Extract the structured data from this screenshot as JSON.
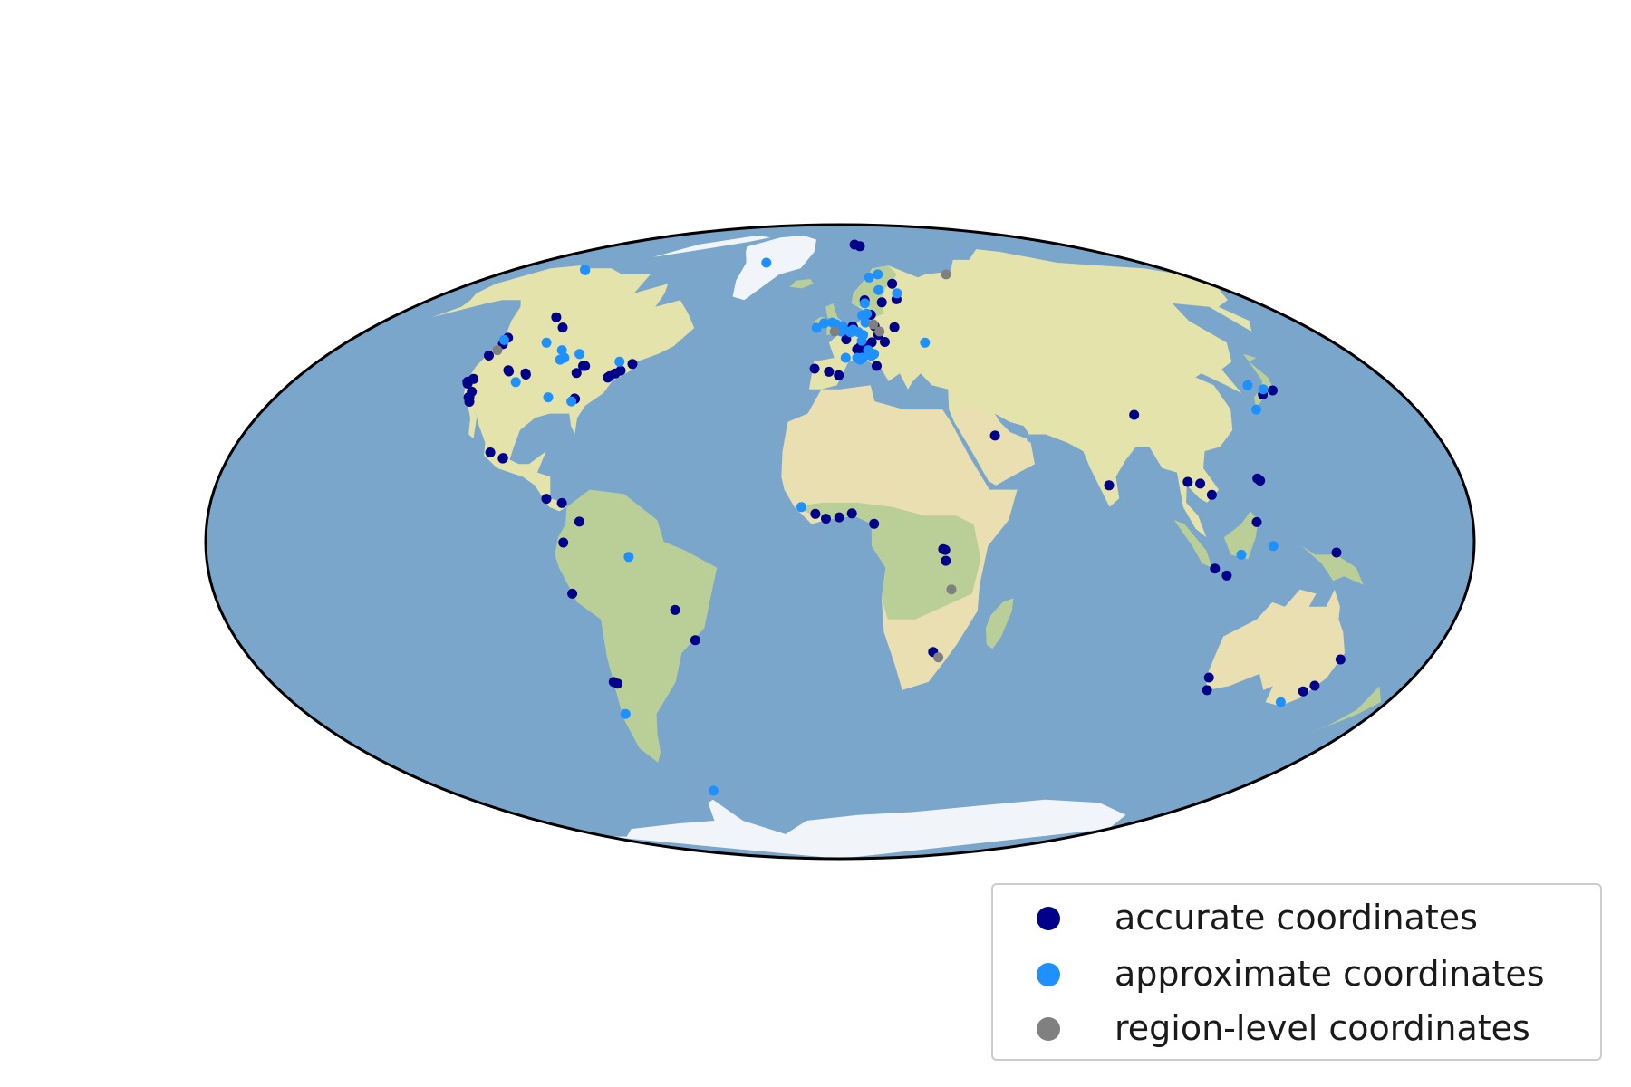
{
  "colors": {
    "ocean": "#7aa6cc",
    "ocean_deep": "#6b9ac2",
    "land": "#e3e3ab",
    "land_green": "#b9cf97",
    "land_desert": "#eadfb0",
    "land_mountain": "#c8c0a0",
    "ice": "#f1f4f8",
    "outline": "#000000"
  },
  "legend": {
    "items": [
      {
        "label": "accurate coordinates",
        "color": "#00008b"
      },
      {
        "label": "approximate coordinates",
        "color": "#1e90ff"
      },
      {
        "label": "region-level coordinates",
        "color": "#808080"
      }
    ]
  },
  "chart_data": {
    "type": "scatter",
    "projection": "mollweide",
    "x_unit": "longitude (degrees)",
    "y_unit": "latitude (degrees)",
    "grid": false,
    "legend_placement": "bottom-right",
    "series": [
      {
        "name": "accurate coordinates",
        "color": "#00008b",
        "points": [
          [
            -123.0,
            49.3
          ],
          [
            -122.3,
            47.6
          ],
          [
            -123.1,
            44.6
          ],
          [
            -122.4,
            37.8
          ],
          [
            -121.9,
            37.4
          ],
          [
            -122.3,
            37.9
          ],
          [
            -118.2,
            34.1
          ],
          [
            -117.2,
            32.9
          ],
          [
            -118.4,
            34.0
          ],
          [
            -121.2,
            38.6
          ],
          [
            -118.6,
            35.4
          ],
          [
            -114.0,
            55.0
          ],
          [
            -106.7,
            52.1
          ],
          [
            -111.9,
            40.8
          ],
          [
            -111.4,
            40.5
          ],
          [
            -105.3,
            40.0
          ],
          [
            -104.9,
            39.7
          ],
          [
            -87.6,
            41.9
          ],
          [
            -86.9,
            41.9
          ],
          [
            -88.3,
            40.1
          ],
          [
            -84.4,
            33.7
          ],
          [
            -84.2,
            33.6
          ],
          [
            -77.0,
            38.9
          ],
          [
            -75.2,
            40.0
          ],
          [
            -73.9,
            40.7
          ],
          [
            -76.6,
            39.3
          ],
          [
            -71.1,
            42.4
          ],
          [
            -99.1,
            19.4
          ],
          [
            -103.4,
            20.7
          ],
          [
            -99.2,
            19.3
          ],
          [
            -84.1,
            9.9
          ],
          [
            -79.5,
            8.9
          ],
          [
            -74.1,
            4.6
          ],
          [
            -77.0,
            -12.0
          ],
          [
            -78.5,
            -0.2
          ],
          [
            -47.9,
            -15.8
          ],
          [
            -43.2,
            -22.9
          ],
          [
            -70.6,
            -33.4
          ],
          [
            -71.6,
            -33.0
          ],
          [
            -8.6,
            41.2
          ],
          [
            -3.7,
            40.4
          ],
          [
            -0.4,
            39.5
          ],
          [
            -0.1,
            51.5
          ],
          [
            -1.3,
            51.8
          ],
          [
            2.3,
            48.9
          ],
          [
            4.9,
            52.4
          ],
          [
            8.5,
            47.4
          ],
          [
            7.4,
            46.9
          ],
          [
            11.6,
            48.1
          ],
          [
            13.4,
            52.5
          ],
          [
            9.2,
            45.5
          ],
          [
            12.5,
            41.9
          ],
          [
            18.1,
            59.3
          ],
          [
            10.8,
            59.9
          ],
          [
            12.6,
            55.7
          ],
          [
            24.9,
            60.2
          ],
          [
            16.4,
            48.2
          ],
          [
            14.4,
            50.1
          ],
          [
            11.9,
            78.9
          ],
          [
            15.6,
            78.2
          ],
          [
            25.5,
            65.0
          ],
          [
            21.0,
            52.2
          ],
          [
            6.1,
            46.2
          ],
          [
            5.1,
            52.1
          ],
          [
            -4.0,
            5.3
          ],
          [
            -0.2,
            5.6
          ],
          [
            3.4,
            6.5
          ],
          [
            -7.0,
            6.4
          ],
          [
            9.7,
            4.1
          ],
          [
            29.3,
            -1.7
          ],
          [
            29.9,
            -1.9
          ],
          [
            30.1,
            -4.4
          ],
          [
            28.2,
            -25.7
          ],
          [
            46.7,
            24.7
          ],
          [
            77.6,
            13.0
          ],
          [
            91.1,
            29.7
          ],
          [
            100.5,
            13.8
          ],
          [
            106.7,
            10.8
          ],
          [
            106.8,
            -6.2
          ],
          [
            110.4,
            -7.8
          ],
          [
            120.9,
            14.6
          ],
          [
            121.5,
            14.1
          ],
          [
            118.5,
            4.5
          ],
          [
            139.7,
            35.7
          ],
          [
            135.5,
            34.7
          ],
          [
            141.0,
            -2.5
          ],
          [
            115.9,
            -31.9
          ],
          [
            117.9,
            -35.0
          ],
          [
            151.2,
            -33.9
          ],
          [
            153.0,
            -27.5
          ],
          [
            149.1,
            -35.3
          ],
          [
            104.0,
            13.4
          ]
        ]
      },
      {
        "name": "approximate coordinates",
        "color": "#1e90ff",
        "points": [
          [
            -141.0,
            69.6
          ],
          [
            -140.0,
            69.4
          ],
          [
            -44.0,
            72.0
          ],
          [
            -123.5,
            48.7
          ],
          [
            -106.5,
            37.8
          ],
          [
            -107.0,
            48.0
          ],
          [
            -99.0,
            46.0
          ],
          [
            -97.0,
            43.5
          ],
          [
            -96.0,
            44.0
          ],
          [
            -91.7,
            45.0
          ],
          [
            -85.0,
            33.0
          ],
          [
            -76.0,
            43.0
          ],
          [
            -93.0,
            34.0
          ],
          [
            -60.0,
            -3.5
          ],
          [
            -72.5,
            -41.0
          ],
          [
            -58.0,
            -62.2
          ],
          [
            -9.0,
            52.0
          ],
          [
            -3.0,
            53.5
          ],
          [
            -1.5,
            53.0
          ],
          [
            -6.2,
            53.3
          ],
          [
            1.0,
            52.5
          ],
          [
            0.5,
            51.0
          ],
          [
            3.7,
            51.0
          ],
          [
            6.9,
            50.9
          ],
          [
            5.0,
            51.5
          ],
          [
            4.0,
            50.8
          ],
          [
            8.7,
            50.1
          ],
          [
            10.0,
            53.5
          ],
          [
            10.7,
            59.0
          ],
          [
            9.0,
            55.5
          ],
          [
            11.0,
            56.0
          ],
          [
            18.0,
            63.0
          ],
          [
            20.0,
            68.0
          ],
          [
            15.0,
            67.0
          ],
          [
            26.0,
            62.0
          ],
          [
            31.0,
            48.0
          ],
          [
            10.0,
            46.0
          ],
          [
            8.0,
            44.0
          ],
          [
            11.0,
            44.5
          ],
          [
            6.0,
            44.0
          ],
          [
            7.0,
            43.5
          ],
          [
            12.0,
            45.0
          ],
          [
            8.0,
            48.5
          ],
          [
            2.0,
            44.0
          ],
          [
            -11.0,
            8.0
          ],
          [
            133.0,
            37.0
          ],
          [
            137.0,
            36.0
          ],
          [
            130.0,
            31.0
          ],
          [
            114.0,
            -3.0
          ],
          [
            123.0,
            -1.0
          ],
          [
            145.0,
            -38.0
          ]
        ]
      },
      {
        "name": "region-level coordinates",
        "color": "#808080",
        "points": [
          [
            -122.0,
            46.0
          ],
          [
            -2.0,
            51.0
          ],
          [
            13.0,
            53.0
          ],
          [
            15.0,
            51.0
          ],
          [
            56.0,
            68.0
          ],
          [
            32.0,
            -11.0
          ],
          [
            30.0,
            -27.0
          ]
        ]
      }
    ]
  }
}
